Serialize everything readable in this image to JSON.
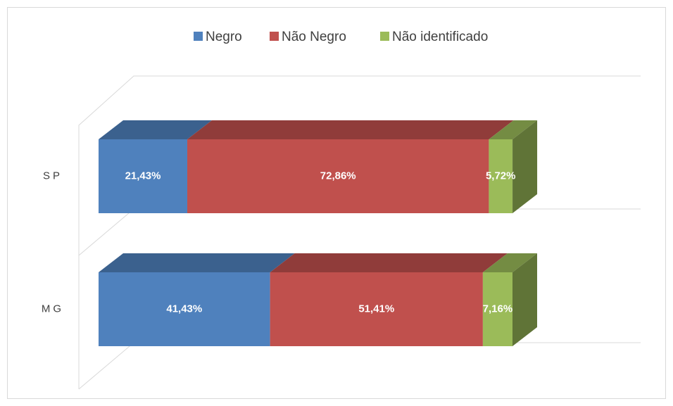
{
  "chart_data": {
    "type": "bar3d_stacked_horizontal",
    "categories": [
      "SP",
      "MG"
    ],
    "series": [
      {
        "name": "Negro",
        "color": "#4f81bd",
        "values": [
          21.43,
          41.43
        ],
        "value_labels": [
          "21,43%",
          "41,43%"
        ]
      },
      {
        "name": "Não Negro",
        "color": "#c0504d",
        "values": [
          72.86,
          51.41
        ],
        "value_labels": [
          "72,86%",
          "51,41%"
        ]
      },
      {
        "name": "Não identificado",
        "color": "#9bbb59",
        "values": [
          5.72,
          7.16
        ],
        "value_labels": [
          "5,72%",
          "7,16%"
        ]
      }
    ],
    "xlim": [
      0,
      100
    ],
    "legend": "top"
  }
}
